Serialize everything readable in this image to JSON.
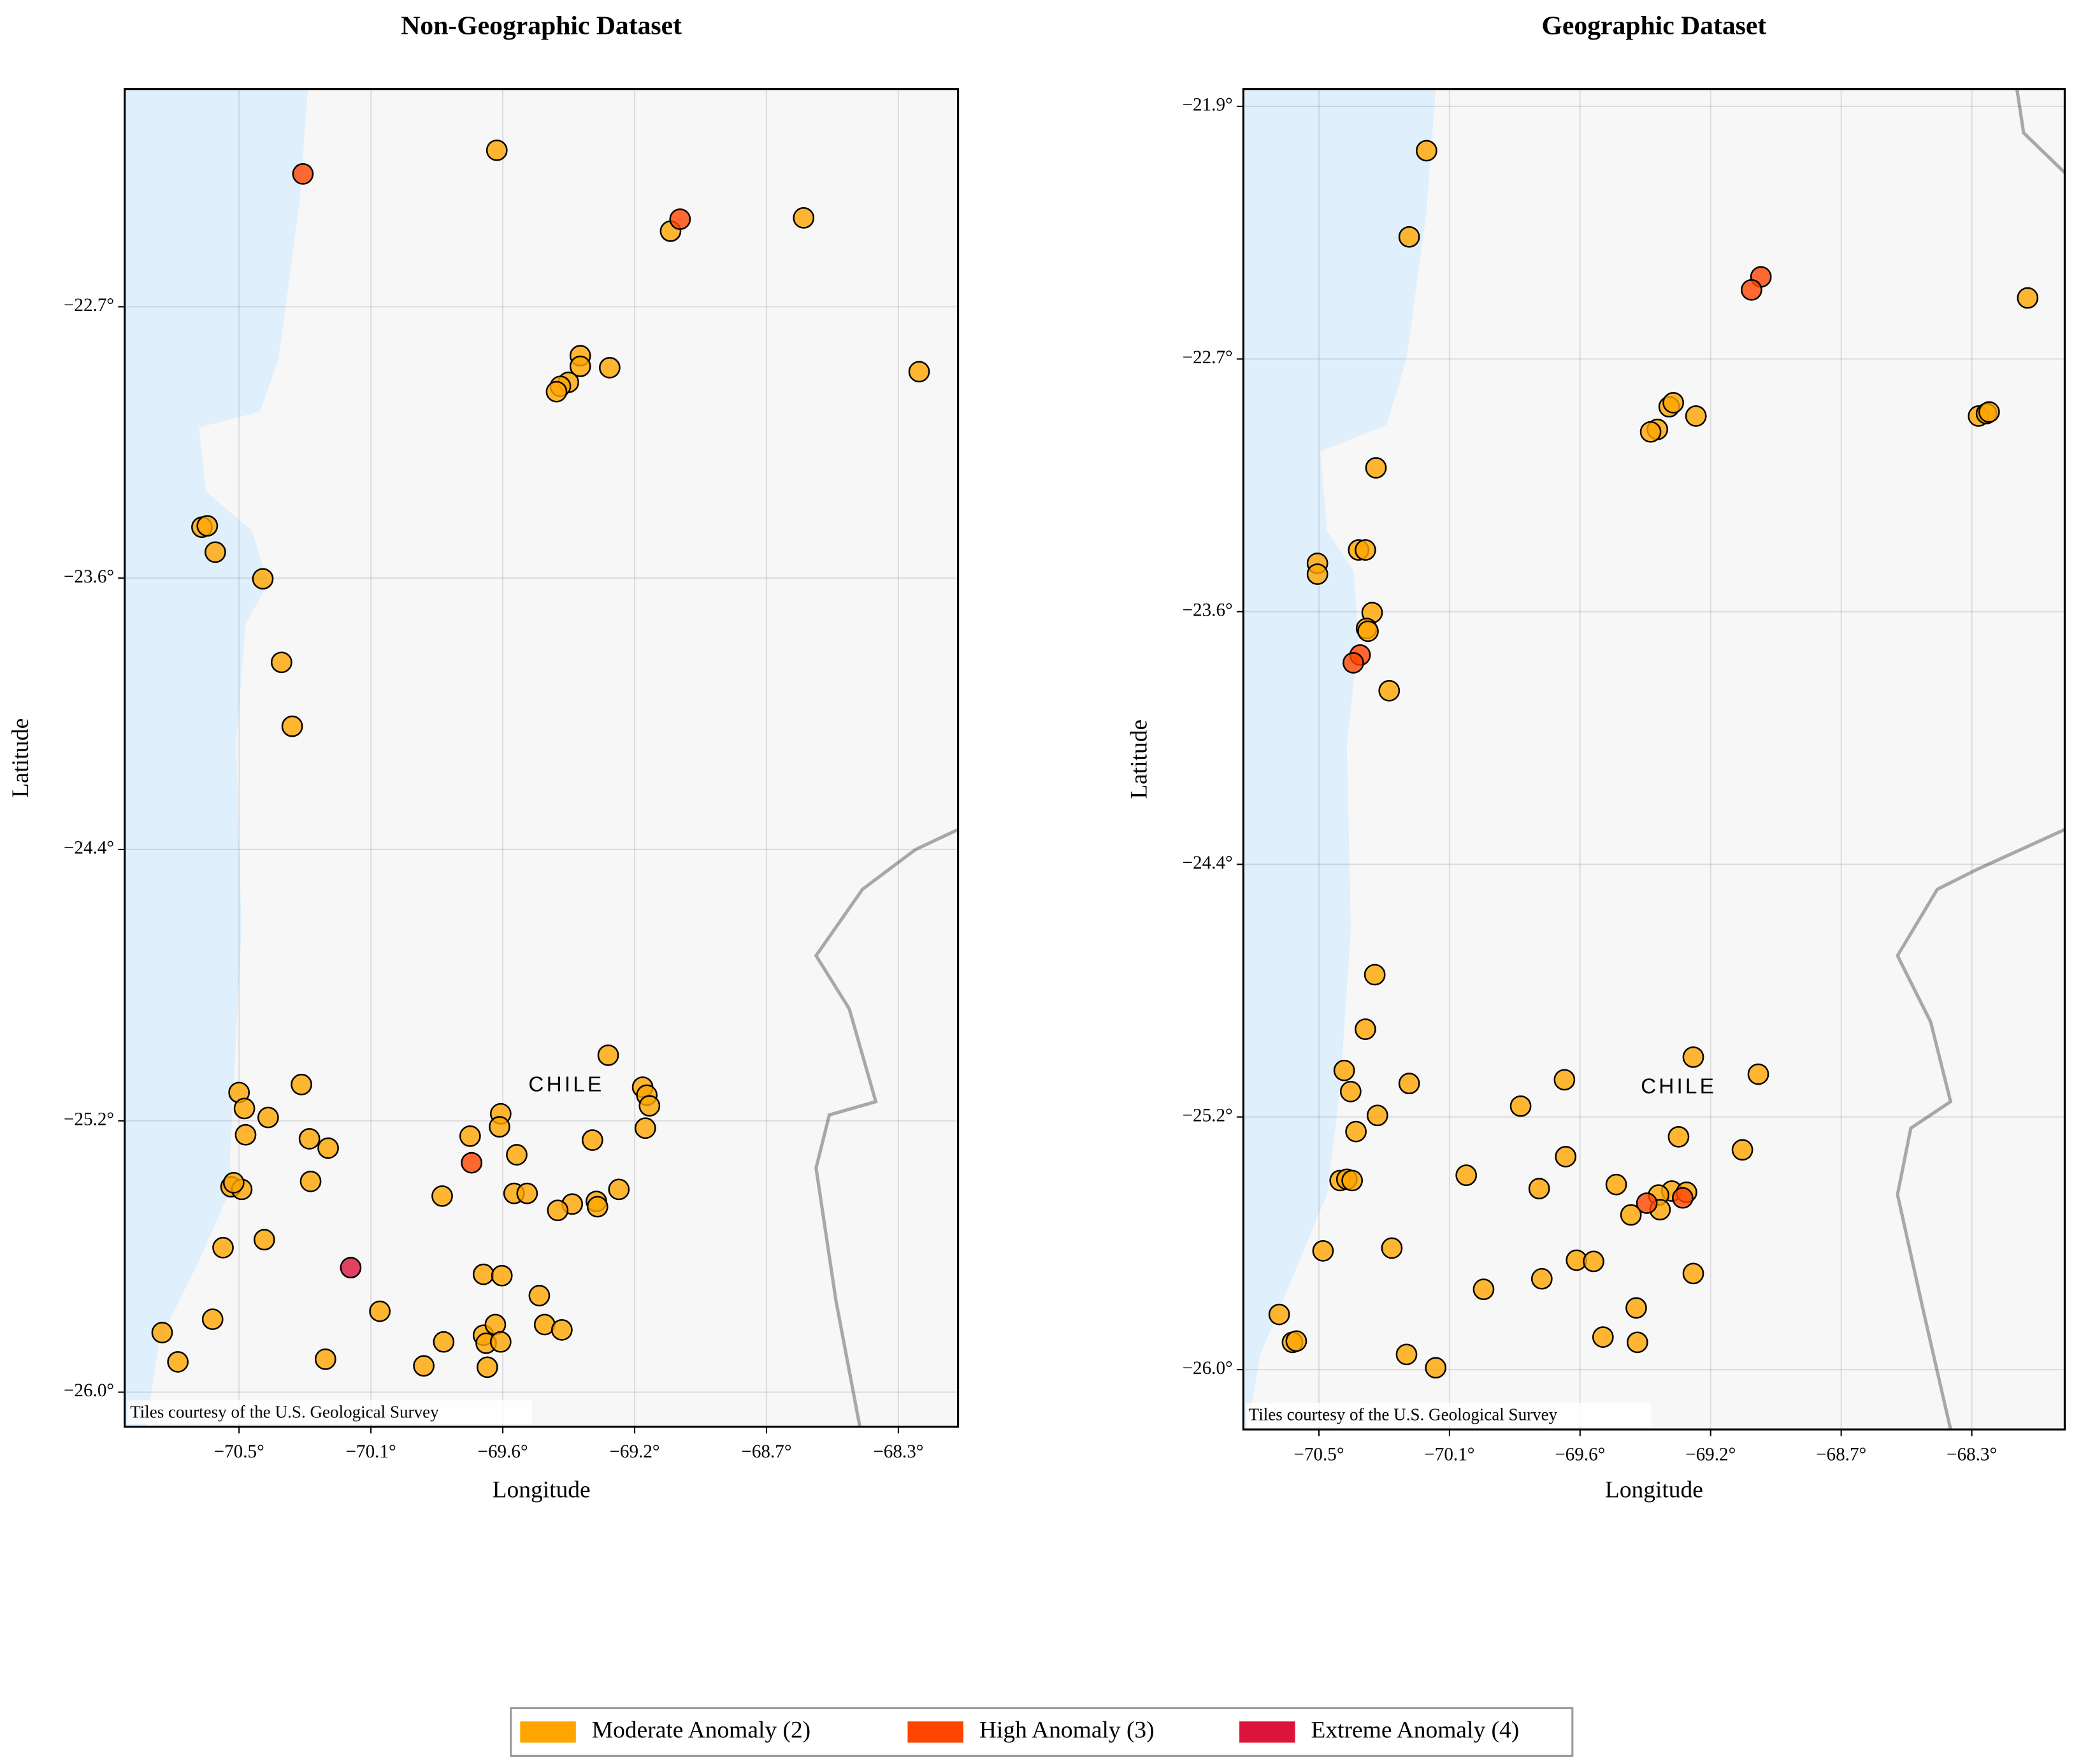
{
  "chart_data": [
    {
      "type": "scatter",
      "title": "Non-Geographic Dataset",
      "xlabel": "Longitude",
      "ylabel": "Latitude",
      "attribution": "Tiles courtesy of the U.S. Geological Survey",
      "map_label": "CHILE",
      "grid": true,
      "xlim": [
        -70.885,
        -68.079
      ],
      "ylim": [
        -26.104,
        -22.086
      ],
      "xticks": [
        {
          "value": -70.5,
          "label": "−70.5°"
        },
        {
          "value": -70.056,
          "label": "−70.1°"
        },
        {
          "value": -69.612,
          "label": "−69.6°"
        },
        {
          "value": -69.168,
          "label": "−69.2°"
        },
        {
          "value": -68.724,
          "label": "−68.7°"
        },
        {
          "value": -68.28,
          "label": "−68.3°"
        }
      ],
      "yticks": [
        {
          "value": -26.0,
          "label": "−26.0°"
        },
        {
          "value": -25.185,
          "label": "−25.2°"
        },
        {
          "value": -24.37,
          "label": "−24.4°"
        },
        {
          "value": -23.555,
          "label": "−23.6°"
        },
        {
          "value": -22.74,
          "label": "−22.7°"
        }
      ],
      "series": [
        {
          "name": "Moderate Anomaly (2)",
          "color": "#ffa500",
          "x": [
            -69.632,
            -68.599,
            -69.047,
            -68.21,
            -69.351,
            -69.351,
            -69.252,
            -69.391,
            -69.418,
            -69.431,
            -70.625,
            -70.607,
            -70.58,
            -70.42,
            -70.357,
            -70.321,
            -69.257,
            -69.141,
            -69.127,
            -69.118,
            -70.5,
            -70.482,
            -70.29,
            -70.402,
            -70.478,
            -70.263,
            -70.2,
            -69.722,
            -69.619,
            -69.623,
            -69.31,
            -69.132,
            -69.565,
            -70.259,
            -70.527,
            -70.491,
            -70.518,
            -69.816,
            -69.574,
            -69.53,
            -69.378,
            -69.297,
            -69.293,
            -69.221,
            -69.427,
            -70.554,
            -70.415,
            -69.677,
            -69.615,
            -69.489,
            -70.026,
            -70.589,
            -70.759,
            -70.706,
            -70.209,
            -69.811,
            -69.677,
            -69.637,
            -69.668,
            -69.619,
            -69.471,
            -69.413,
            -69.878,
            -69.664
          ],
          "y": [
            -22.27,
            -22.473,
            -22.513,
            -22.935,
            -22.887,
            -22.919,
            -22.923,
            -22.967,
            -22.979,
            -22.995,
            -23.402,
            -23.398,
            -23.477,
            -23.557,
            -23.808,
            -24.0,
            -24.988,
            -25.084,
            -25.108,
            -25.14,
            -25.1,
            -25.148,
            -25.076,
            -25.175,
            -25.227,
            -25.239,
            -25.267,
            -25.231,
            -25.164,
            -25.203,
            -25.243,
            -25.207,
            -25.287,
            -25.367,
            -25.383,
            -25.391,
            -25.371,
            -25.411,
            -25.403,
            -25.403,
            -25.435,
            -25.427,
            -25.443,
            -25.391,
            -25.454,
            -25.566,
            -25.542,
            -25.646,
            -25.65,
            -25.71,
            -25.757,
            -25.781,
            -25.821,
            -25.909,
            -25.901,
            -25.849,
            -25.829,
            -25.797,
            -25.853,
            -25.849,
            -25.797,
            -25.813,
            -25.921,
            -25.925
          ]
        },
        {
          "name": "High Anomaly (3)",
          "color": "#ff4500",
          "x": [
            -70.285,
            -69.015,
            -69.717
          ],
          "y": [
            -22.341,
            -22.477,
            -25.311
          ]
        },
        {
          "name": "Extreme Anomaly (4)",
          "color": "#dc143c",
          "x": [
            -70.124
          ],
          "y": [
            -25.626
          ]
        }
      ]
    },
    {
      "type": "scatter",
      "title": "Geographic Dataset",
      "xlabel": "Longitude",
      "ylabel": "Latitude",
      "attribution": "Tiles courtesy of the U.S. Geological Survey",
      "map_label": "CHILE",
      "grid": true,
      "xlim": [
        -70.757,
        -67.964
      ],
      "ylim": [
        -26.193,
        -21.869
      ],
      "xticks": [
        {
          "value": -70.5,
          "label": "−70.5°"
        },
        {
          "value": -70.056,
          "label": "−70.1°"
        },
        {
          "value": -69.612,
          "label": "−69.6°"
        },
        {
          "value": -69.168,
          "label": "−69.2°"
        },
        {
          "value": -68.724,
          "label": "−68.7°"
        },
        {
          "value": -68.28,
          "label": "−68.3°"
        }
      ],
      "yticks": [
        {
          "value": -26.0,
          "label": "−26.0°"
        },
        {
          "value": -25.185,
          "label": "−25.2°"
        },
        {
          "value": -24.37,
          "label": "−24.4°"
        },
        {
          "value": -23.555,
          "label": "−23.6°"
        },
        {
          "value": -22.74,
          "label": "−22.7°"
        },
        {
          "value": -21.925,
          "label": "−21.9°"
        }
      ],
      "series": [
        {
          "color": "#ffa500",
          "x": [
            -70.134,
            -70.193,
            -68.09,
            -69.218,
            -69.309,
            -69.295,
            -69.349,
            -69.372,
            -68.257,
            -68.23,
            -68.221,
            -70.306,
            -70.365,
            -70.342,
            -70.505,
            -70.505,
            -70.319,
            -70.338,
            -70.333,
            -70.261,
            -70.31,
            -70.342,
            -69.227,
            -69.006,
            -70.414,
            -70.392,
            -69.665,
            -70.193,
            -69.814,
            -70.301,
            -70.374,
            -69.277,
            -69.06,
            -69.661,
            -69.999,
            -70.428,
            -70.405,
            -70.387,
            -69.751,
            -69.489,
            -69.3,
            -69.25,
            -69.345,
            -69.439,
            -69.34,
            -70.486,
            -70.252,
            -69.94,
            -69.742,
            -69.624,
            -69.566,
            -69.227,
            -70.635,
            -70.59,
            -70.577,
            -69.421,
            -69.534,
            -69.417,
            -70.202,
            -70.103
          ],
          "y": [
            -22.068,
            -22.346,
            -22.543,
            -22.924,
            -22.894,
            -22.881,
            -22.967,
            -22.975,
            -22.924,
            -22.916,
            -22.911,
            -23.091,
            -23.356,
            -23.356,
            -23.399,
            -23.434,
            -23.558,
            -23.609,
            -23.618,
            -23.81,
            -24.726,
            -24.902,
            -24.992,
            -25.047,
            -25.035,
            -25.103,
            -25.065,
            -25.077,
            -25.15,
            -25.18,
            -25.232,
            -25.249,
            -25.291,
            -25.313,
            -25.373,
            -25.39,
            -25.386,
            -25.39,
            -25.416,
            -25.403,
            -25.424,
            -25.428,
            -25.437,
            -25.501,
            -25.484,
            -25.617,
            -25.608,
            -25.741,
            -25.707,
            -25.647,
            -25.651,
            -25.69,
            -25.822,
            -25.912,
            -25.908,
            -25.801,
            -25.895,
            -25.912,
            -25.951,
            -25.994
          ]
        },
        {
          "color": "#ff4500",
          "x": [
            -68.997,
            -69.029,
            -70.36,
            -70.383,
            -69.385,
            -69.263
          ],
          "y": [
            -22.475,
            -22.517,
            -23.695,
            -23.72,
            -25.463,
            -25.446
          ]
        }
      ]
    }
  ]
}
